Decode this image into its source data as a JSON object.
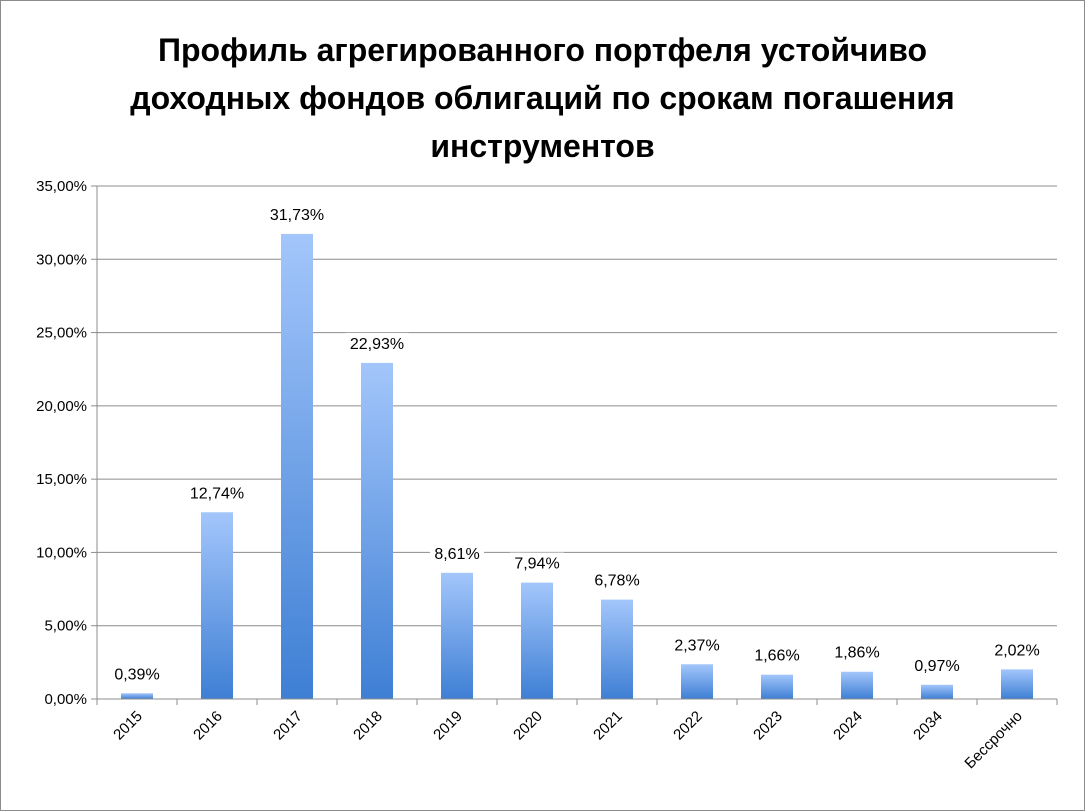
{
  "chart_data": {
    "type": "bar",
    "title": "Профиль агрегированного портфеля устойчиво доходных фондов облигаций по срокам погашения инструментов",
    "title_lines": [
      "Профиль агрегированного портфеля устойчиво",
      "доходных фондов облигаций по срокам погашения",
      "инструментов"
    ],
    "categories": [
      "2015",
      "2016",
      "2017",
      "2018",
      "2019",
      "2020",
      "2021",
      "2022",
      "2023",
      "2024",
      "2034",
      "Бессрочно"
    ],
    "values": [
      0.39,
      12.74,
      31.73,
      22.93,
      8.61,
      7.94,
      6.78,
      2.37,
      1.66,
      1.86,
      0.97,
      2.02
    ],
    "data_labels": [
      "0,39%",
      "12,74%",
      "31,73%",
      "22,93%",
      "8,61%",
      "7,94%",
      "6,78%",
      "2,37%",
      "1,66%",
      "1,86%",
      "0,97%",
      "2,02%"
    ],
    "y_ticks": [
      "0,00%",
      "5,00%",
      "10,00%",
      "15,00%",
      "20,00%",
      "25,00%",
      "30,00%",
      "35,00%"
    ],
    "ylim": [
      0,
      35
    ],
    "y_step": 5,
    "grid": true,
    "legend": "none",
    "bar_color_light": "#a3c6fb",
    "bar_color_dark": "#3e7fd4",
    "gridline_color": "#8c8c8c"
  }
}
